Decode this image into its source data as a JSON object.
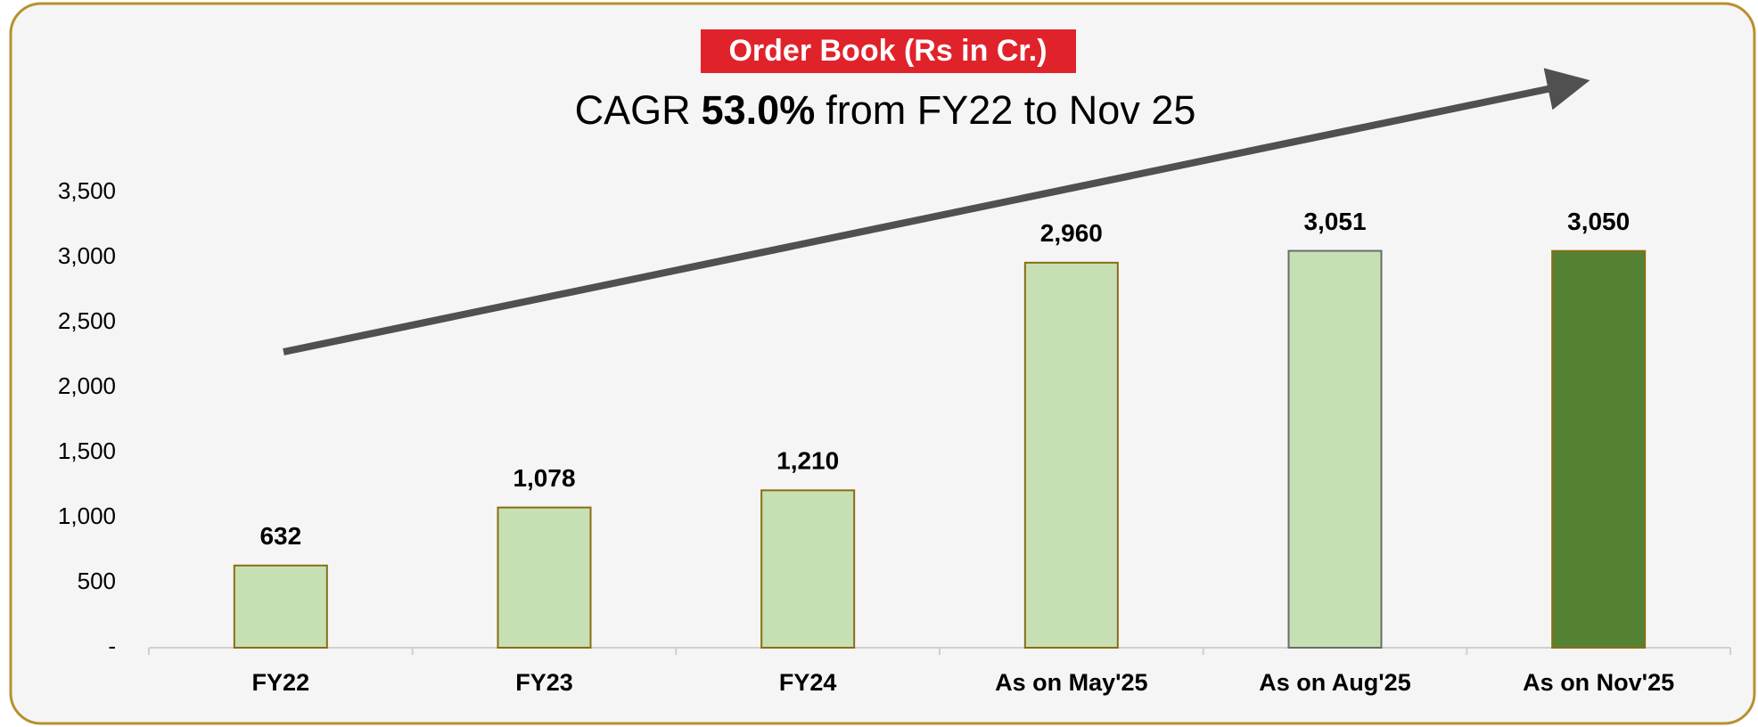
{
  "chart_data": {
    "type": "bar",
    "title": "Order Book (Rs in Cr.)",
    "subtitle_parts": [
      "CAGR",
      "53.0%",
      "from FY22 to Nov 25"
    ],
    "categories": [
      "FY22",
      "FY23",
      "FY24",
      "As on May'25",
      "As on Aug'25",
      "As on Nov'25"
    ],
    "values": [
      632,
      1078,
      1210,
      2960,
      3051,
      3050
    ],
    "value_labels": [
      "632",
      "1,078",
      "1,210",
      "2,960",
      "3,051",
      "3,050"
    ],
    "colors": [
      "#c6e0b4",
      "#c6e0b4",
      "#c6e0b4",
      "#c6e0b4",
      "#c6e0b4",
      "#548235"
    ],
    "ylim": [
      0,
      3500
    ],
    "yticks": [
      {
        "value": 0,
        "label": "-"
      },
      500,
      {
        "value": 1000,
        "label": "1,000"
      },
      {
        "value": 1500,
        "label": "1,500"
      },
      {
        "value": 2000,
        "label": "2,000"
      },
      {
        "value": 2500,
        "label": "2,500"
      },
      {
        "value": 3000,
        "label": "3,000"
      },
      {
        "value": 3500,
        "label": "3,500"
      }
    ]
  }
}
